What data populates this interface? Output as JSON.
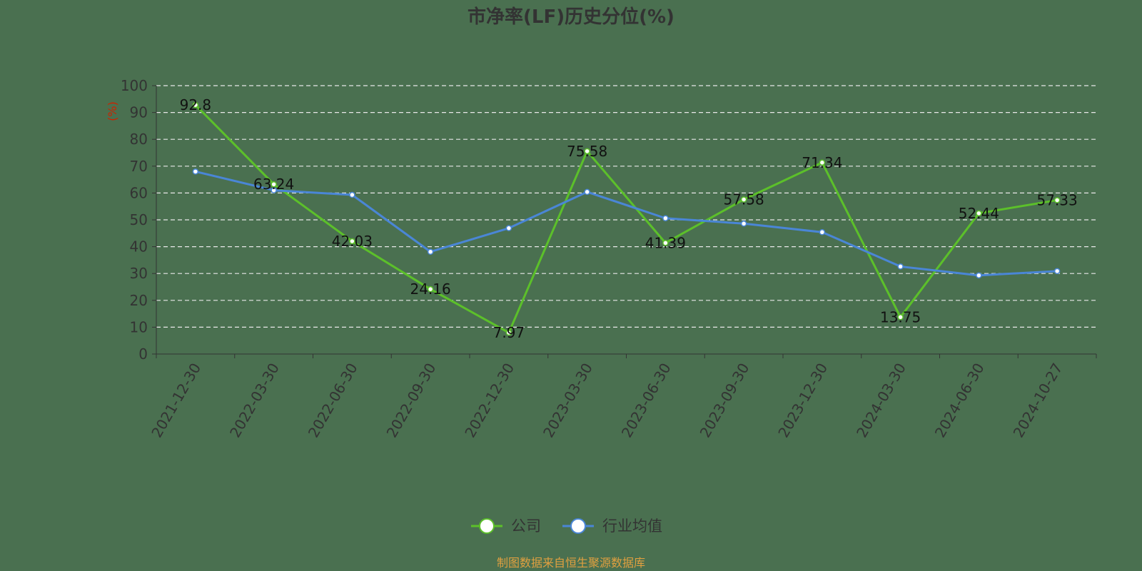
{
  "chart_data": {
    "type": "line",
    "title": "市净率(LF)历史分位(%)",
    "ylabel": "(%)",
    "ylim": [
      0,
      100
    ],
    "yticks": [
      0,
      10,
      20,
      30,
      40,
      50,
      60,
      70,
      80,
      90,
      100
    ],
    "categories": [
      "2021-12-30",
      "2022-03-30",
      "2022-06-30",
      "2022-09-30",
      "2022-12-30",
      "2023-03-30",
      "2023-06-30",
      "2023-09-30",
      "2023-12-30",
      "2024-03-30",
      "2024-06-30",
      "2024-10-27"
    ],
    "series": [
      {
        "name": "公司",
        "color": "#5cc02a",
        "values": [
          92.8,
          63.24,
          42.03,
          24.16,
          7.97,
          75.58,
          41.39,
          57.58,
          71.34,
          13.75,
          52.44,
          57.33
        ],
        "labels": [
          "92.8",
          "63.24",
          "42.03",
          "24.16",
          "7.97",
          "75.58",
          "41.39",
          "57.58",
          "71.34",
          "13.75",
          "52.44",
          "57.33"
        ]
      },
      {
        "name": "行业均值",
        "color": "#4a86d6",
        "values": [
          68,
          61,
          59.3,
          38.1,
          46.9,
          60.4,
          50.6,
          48.6,
          45.4,
          32.6,
          29.3,
          30.9
        ]
      }
    ],
    "grid": true,
    "legend_position": "bottom-center"
  },
  "footer": "制图数据来自恒生聚源数据库"
}
